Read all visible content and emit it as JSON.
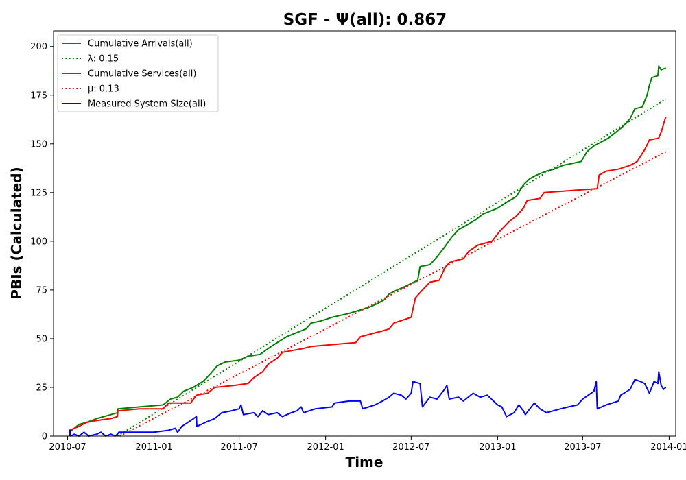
{
  "chart_data": {
    "type": "line",
    "title": "SGF -  Ψ(all): 0.867",
    "xlabel": "Time",
    "ylabel": "PBIs (Calculated)",
    "x_type": "date",
    "xlim": [
      "2010-06-01",
      "2014-01-15"
    ],
    "ylim": [
      0,
      208
    ],
    "x_ticks": [
      "2010-07",
      "2011-01",
      "2011-07",
      "2012-01",
      "2012-07",
      "2013-01",
      "2013-07",
      "2014-01"
    ],
    "y_ticks": [
      0,
      25,
      50,
      75,
      100,
      125,
      150,
      175,
      200
    ],
    "grid": false,
    "legend_position": "top-left",
    "series": [
      {
        "name": "Cumulative Arrivals(all)",
        "style": "solid",
        "color": "#008000",
        "points": [
          [
            "2010-07-05",
            2
          ],
          [
            "2010-07-15",
            4
          ],
          [
            "2010-07-25",
            6
          ],
          [
            "2010-08-10",
            7
          ],
          [
            "2010-09-01",
            9
          ],
          [
            "2010-10-01",
            11
          ],
          [
            "2010-10-15",
            12
          ],
          [
            "2010-10-16",
            14
          ],
          [
            "2010-12-01",
            15
          ],
          [
            "2011-01-20",
            16
          ],
          [
            "2011-02-05",
            19
          ],
          [
            "2011-02-20",
            20
          ],
          [
            "2011-03-05",
            23
          ],
          [
            "2011-03-25",
            25
          ],
          [
            "2011-04-15",
            28
          ],
          [
            "2011-05-01",
            32
          ],
          [
            "2011-05-15",
            36
          ],
          [
            "2011-06-01",
            38
          ],
          [
            "2011-07-01",
            39
          ],
          [
            "2011-07-20",
            41
          ],
          [
            "2011-08-15",
            42
          ],
          [
            "2011-09-01",
            45
          ],
          [
            "2011-09-20",
            48
          ],
          [
            "2011-10-10",
            51
          ],
          [
            "2011-10-30",
            53
          ],
          [
            "2011-11-20",
            55
          ],
          [
            "2011-12-01",
            58
          ],
          [
            "2011-12-20",
            59
          ],
          [
            "2012-01-15",
            61
          ],
          [
            "2012-02-20",
            63
          ],
          [
            "2012-04-01",
            66
          ],
          [
            "2012-04-20",
            68
          ],
          [
            "2012-05-05",
            70
          ],
          [
            "2012-05-15",
            73
          ],
          [
            "2012-06-01",
            75
          ],
          [
            "2012-06-20",
            77
          ],
          [
            "2012-07-15",
            80
          ],
          [
            "2012-07-20",
            87
          ],
          [
            "2012-08-10",
            88
          ],
          [
            "2012-08-25",
            92
          ],
          [
            "2012-09-10",
            97
          ],
          [
            "2012-09-25",
            102
          ],
          [
            "2012-10-10",
            106
          ],
          [
            "2012-10-25",
            108
          ],
          [
            "2012-11-15",
            111
          ],
          [
            "2012-12-01",
            114
          ],
          [
            "2013-01-01",
            117
          ],
          [
            "2013-01-20",
            120
          ],
          [
            "2013-02-10",
            123
          ],
          [
            "2013-02-25",
            129
          ],
          [
            "2013-03-10",
            132
          ],
          [
            "2013-03-25",
            134
          ],
          [
            "2013-04-15",
            136
          ],
          [
            "2013-05-01",
            137
          ],
          [
            "2013-05-20",
            139
          ],
          [
            "2013-06-10",
            140
          ],
          [
            "2013-06-28",
            141
          ],
          [
            "2013-07-10",
            146
          ],
          [
            "2013-07-25",
            149
          ],
          [
            "2013-08-10",
            151
          ],
          [
            "2013-08-25",
            153
          ],
          [
            "2013-09-10",
            156
          ],
          [
            "2013-09-25",
            159
          ],
          [
            "2013-10-10",
            163
          ],
          [
            "2013-10-20",
            168
          ],
          [
            "2013-11-05",
            169
          ],
          [
            "2013-11-15",
            175
          ],
          [
            "2013-11-20",
            180
          ],
          [
            "2013-11-25",
            184
          ],
          [
            "2013-12-08",
            185
          ],
          [
            "2013-12-10",
            190
          ],
          [
            "2013-12-15",
            188
          ],
          [
            "2013-12-25",
            189
          ]
        ]
      },
      {
        "name": "λ: 0.15",
        "style": "dotted",
        "color": "#008000",
        "points": [
          [
            "2010-10-15",
            0
          ],
          [
            "2013-12-25",
            173
          ]
        ]
      },
      {
        "name": "Cumulative Services(all)",
        "style": "solid",
        "color": "#ff0000",
        "points": [
          [
            "2010-07-05",
            3
          ],
          [
            "2010-07-25",
            5
          ],
          [
            "2010-08-10",
            7
          ],
          [
            "2010-09-01",
            8
          ],
          [
            "2010-10-01",
            9
          ],
          [
            "2010-10-15",
            10
          ],
          [
            "2010-10-16",
            13
          ],
          [
            "2010-12-01",
            14
          ],
          [
            "2011-01-20",
            14
          ],
          [
            "2011-02-01",
            17
          ],
          [
            "2011-03-20",
            17
          ],
          [
            "2011-04-01",
            21
          ],
          [
            "2011-04-25",
            22
          ],
          [
            "2011-05-10",
            25
          ],
          [
            "2011-06-20",
            26
          ],
          [
            "2011-07-20",
            27
          ],
          [
            "2011-08-01",
            30
          ],
          [
            "2011-08-20",
            33
          ],
          [
            "2011-09-01",
            37
          ],
          [
            "2011-09-20",
            40
          ],
          [
            "2011-10-01",
            43
          ],
          [
            "2011-11-15",
            45
          ],
          [
            "2011-12-01",
            46
          ],
          [
            "2012-03-05",
            48
          ],
          [
            "2012-03-15",
            51
          ],
          [
            "2012-04-15",
            53
          ],
          [
            "2012-05-01",
            54
          ],
          [
            "2012-05-15",
            55
          ],
          [
            "2012-05-25",
            58
          ],
          [
            "2012-07-01",
            61
          ],
          [
            "2012-07-10",
            71
          ],
          [
            "2012-07-25",
            75
          ],
          [
            "2012-08-10",
            79
          ],
          [
            "2012-08-30",
            80
          ],
          [
            "2012-09-10",
            86
          ],
          [
            "2012-09-20",
            89
          ],
          [
            "2012-10-01",
            90
          ],
          [
            "2012-10-20",
            91
          ],
          [
            "2012-11-01",
            95
          ],
          [
            "2012-11-20",
            98
          ],
          [
            "2012-12-20",
            100
          ],
          [
            "2013-01-05",
            105
          ],
          [
            "2013-01-25",
            110
          ],
          [
            "2013-02-10",
            113
          ],
          [
            "2013-02-25",
            117
          ],
          [
            "2013-03-05",
            121
          ],
          [
            "2013-04-01",
            122
          ],
          [
            "2013-04-10",
            125
          ],
          [
            "2013-08-01",
            127
          ],
          [
            "2013-08-05",
            134
          ],
          [
            "2013-08-20",
            136
          ],
          [
            "2013-09-15",
            137
          ],
          [
            "2013-10-10",
            139
          ],
          [
            "2013-10-25",
            141
          ],
          [
            "2013-11-10",
            147
          ],
          [
            "2013-11-20",
            152
          ],
          [
            "2013-12-10",
            153
          ],
          [
            "2013-12-15",
            156
          ],
          [
            "2013-12-20",
            160
          ],
          [
            "2013-12-25",
            164
          ]
        ]
      },
      {
        "name": "μ: 0.13",
        "style": "dotted",
        "color": "#ff0000",
        "points": [
          [
            "2010-10-20",
            0
          ],
          [
            "2013-12-25",
            146
          ]
        ]
      },
      {
        "name": "Measured System Size(all)",
        "style": "solid",
        "color": "#0000ff",
        "points": [
          [
            "2010-07-05",
            0
          ],
          [
            "2010-07-06",
            3
          ],
          [
            "2010-07-08",
            0
          ],
          [
            "2010-07-15",
            1
          ],
          [
            "2010-07-25",
            0
          ],
          [
            "2010-08-05",
            2
          ],
          [
            "2010-08-15",
            0
          ],
          [
            "2010-09-01",
            1
          ],
          [
            "2010-09-10",
            2
          ],
          [
            "2010-09-20",
            0
          ],
          [
            "2010-10-01",
            1
          ],
          [
            "2010-10-10",
            0
          ],
          [
            "2010-10-15",
            1
          ],
          [
            "2010-10-18",
            2
          ],
          [
            "2010-11-15",
            2
          ],
          [
            "2011-01-01",
            2
          ],
          [
            "2011-02-01",
            3
          ],
          [
            "2011-02-15",
            4
          ],
          [
            "2011-02-20",
            2
          ],
          [
            "2011-03-01",
            5
          ],
          [
            "2011-03-20",
            8
          ],
          [
            "2011-04-01",
            10
          ],
          [
            "2011-04-02",
            5
          ],
          [
            "2011-04-20",
            7
          ],
          [
            "2011-05-10",
            9
          ],
          [
            "2011-05-25",
            12
          ],
          [
            "2011-06-15",
            13
          ],
          [
            "2011-07-01",
            14
          ],
          [
            "2011-07-05",
            16
          ],
          [
            "2011-07-10",
            11
          ],
          [
            "2011-08-01",
            12
          ],
          [
            "2011-08-10",
            10
          ],
          [
            "2011-08-20",
            13
          ],
          [
            "2011-09-01",
            11
          ],
          [
            "2011-09-20",
            12
          ],
          [
            "2011-10-01",
            10
          ],
          [
            "2011-10-20",
            12
          ],
          [
            "2011-11-01",
            13
          ],
          [
            "2011-11-10",
            15
          ],
          [
            "2011-11-15",
            12
          ],
          [
            "2011-12-10",
            14
          ],
          [
            "2012-01-15",
            15
          ],
          [
            "2012-01-20",
            17
          ],
          [
            "2012-02-20",
            18
          ],
          [
            "2012-03-15",
            18
          ],
          [
            "2012-03-20",
            14
          ],
          [
            "2012-04-15",
            16
          ],
          [
            "2012-05-01",
            18
          ],
          [
            "2012-05-15",
            20
          ],
          [
            "2012-05-25",
            22
          ],
          [
            "2012-06-10",
            21
          ],
          [
            "2012-06-20",
            19
          ],
          [
            "2012-07-01",
            22
          ],
          [
            "2012-07-05",
            28
          ],
          [
            "2012-07-20",
            27
          ],
          [
            "2012-07-25",
            15
          ],
          [
            "2012-08-10",
            20
          ],
          [
            "2012-08-25",
            19
          ],
          [
            "2012-09-10",
            24
          ],
          [
            "2012-09-15",
            26
          ],
          [
            "2012-09-20",
            19
          ],
          [
            "2012-10-10",
            20
          ],
          [
            "2012-10-20",
            18
          ],
          [
            "2012-11-10",
            22
          ],
          [
            "2012-11-25",
            20
          ],
          [
            "2012-12-10",
            21
          ],
          [
            "2013-01-01",
            16
          ],
          [
            "2013-01-10",
            15
          ],
          [
            "2013-01-20",
            10
          ],
          [
            "2013-02-05",
            12
          ],
          [
            "2013-02-15",
            16
          ],
          [
            "2013-02-25",
            13
          ],
          [
            "2013-03-01",
            11
          ],
          [
            "2013-03-20",
            17
          ],
          [
            "2013-04-01",
            14
          ],
          [
            "2013-04-15",
            12
          ],
          [
            "2013-05-15",
            14
          ],
          [
            "2013-06-01",
            15
          ],
          [
            "2013-06-20",
            16
          ],
          [
            "2013-07-01",
            19
          ],
          [
            "2013-07-25",
            23
          ],
          [
            "2013-07-30",
            28
          ],
          [
            "2013-08-01",
            14
          ],
          [
            "2013-08-20",
            16
          ],
          [
            "2013-09-15",
            18
          ],
          [
            "2013-09-20",
            21
          ],
          [
            "2013-10-10",
            24
          ],
          [
            "2013-10-20",
            29
          ],
          [
            "2013-11-01",
            28
          ],
          [
            "2013-11-10",
            27
          ],
          [
            "2013-11-20",
            22
          ],
          [
            "2013-11-30",
            28
          ],
          [
            "2013-12-08",
            27
          ],
          [
            "2013-12-10",
            33
          ],
          [
            "2013-12-15",
            26
          ],
          [
            "2013-12-20",
            24
          ],
          [
            "2013-12-25",
            25
          ]
        ]
      }
    ]
  }
}
